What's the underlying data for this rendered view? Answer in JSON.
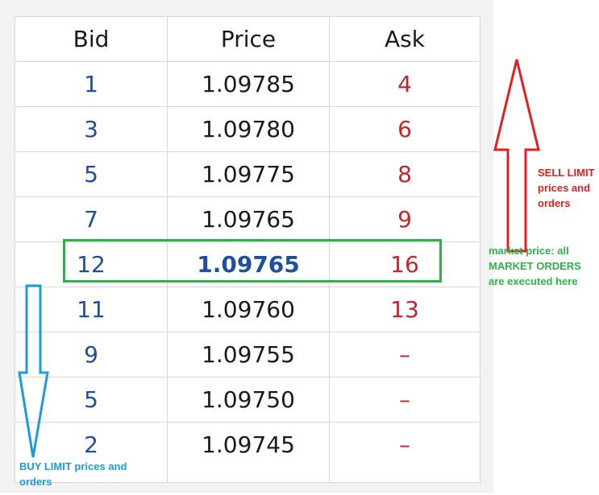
{
  "headers": {
    "bid": "Bid",
    "price": "Price",
    "ask": "Ask"
  },
  "rows": [
    {
      "bid": "1",
      "price": "1.09785",
      "ask": "4"
    },
    {
      "bid": "3",
      "price": "1.09780",
      "ask": "6"
    },
    {
      "bid": "5",
      "price": "1.09775",
      "ask": "8"
    },
    {
      "bid": "7",
      "price": "1.09765",
      "ask": "9"
    },
    {
      "bid": "12",
      "price": "1.09765",
      "ask": "16"
    },
    {
      "bid": "11",
      "price": "1.09760",
      "ask": "13"
    },
    {
      "bid": "9",
      "price": "1.09755",
      "ask": "–"
    },
    {
      "bid": "5",
      "price": "1.09750",
      "ask": "–"
    },
    {
      "bid": "2",
      "price": "1.09745",
      "ask": "–"
    }
  ],
  "annotations": {
    "sell": "SELL LIMIT prices and orders",
    "market": "market price: all MARKET ORDERS are executed here",
    "buy": "BUY LIMIT prices and orders"
  },
  "colors": {
    "bid": "#1f4e9c",
    "ask": "#c0262c",
    "market_box": "#2db34a",
    "sell_arrow": "#e02020",
    "buy_arrow": "#1a9be0"
  }
}
